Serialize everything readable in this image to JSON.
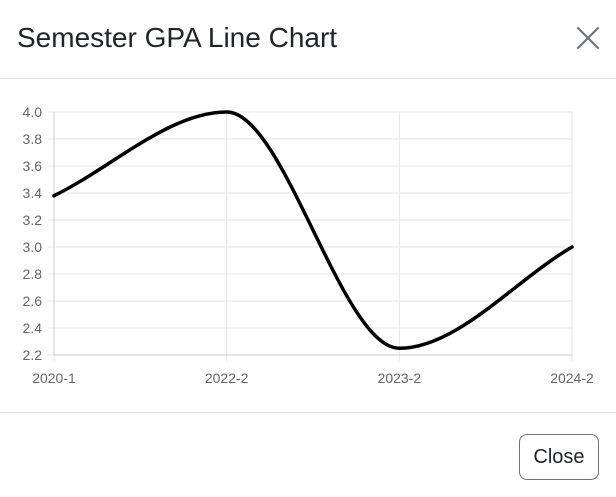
{
  "modal": {
    "title": "Semester GPA Line Chart",
    "close_icon": "close-icon",
    "close_button_label": "Close"
  },
  "colors": {
    "line": "#000000",
    "grid": "#e6e6e6",
    "axis": "#cccccc",
    "tick_text": "#666666",
    "border": "#dee2e6"
  },
  "chart_data": {
    "type": "line",
    "title": "",
    "xlabel": "",
    "ylabel": "",
    "categories": [
      "2020-1",
      "2022-2",
      "2023-2",
      "2024-2"
    ],
    "series": [
      {
        "values": [
          3.38,
          4.0,
          2.25,
          3.0
        ]
      }
    ],
    "ylim": [
      2.2,
      4.0
    ],
    "yticks": [
      "4.0",
      "3.8",
      "3.6",
      "3.4",
      "3.2",
      "3.0",
      "2.8",
      "2.6",
      "2.4",
      "2.2"
    ],
    "grid": true,
    "smooth": true,
    "legend": "none"
  }
}
